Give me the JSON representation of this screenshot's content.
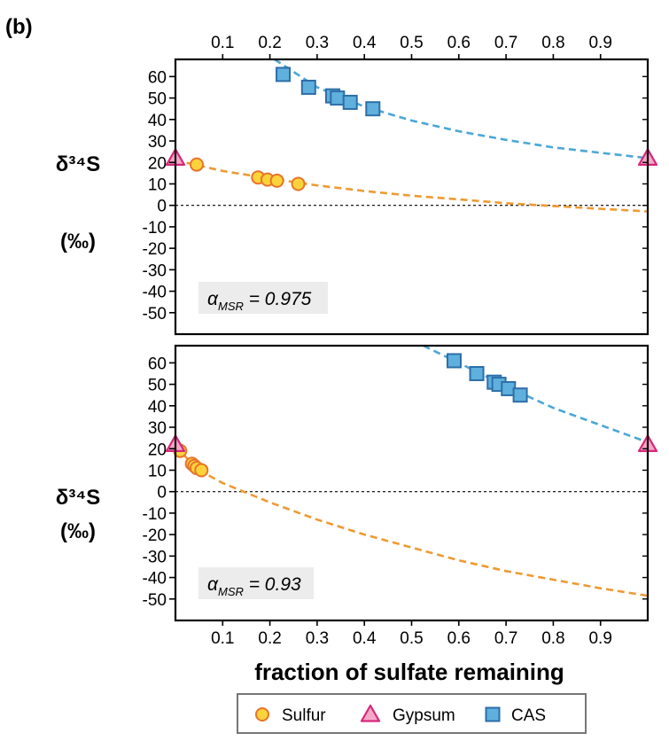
{
  "panel_label": "(b)",
  "xlabel": "fraction of sulfate remaining",
  "ylabel_main": "δ³⁴S",
  "ylabel_unit": "(‰)",
  "colors": {
    "sulfur_fill": "#fcd33b",
    "sulfur_edge": "#e8742a",
    "gypsum_fill": "#f7a8c8",
    "gypsum_edge": "#d6287a",
    "cas_fill": "#5fb0dd",
    "cas_edge": "#2d6ea8",
    "curve_orange": "#ee9a32",
    "curve_blue": "#4aa7d6",
    "annotation_bg": "#ececec"
  },
  "legend": [
    {
      "label": "Sulfur",
      "marker": "circle"
    },
    {
      "label": "Gypsum",
      "marker": "triangle"
    },
    {
      "label": "CAS",
      "marker": "square"
    }
  ],
  "chart_data": [
    {
      "type": "scatter",
      "annotation": {
        "symbol": "α",
        "subscript": "MSR",
        "text": "= 0.975"
      },
      "x_top_ticks": [
        "0.1",
        "0.2",
        "0.3",
        "0.4",
        "0.5",
        "0.6",
        "0.7",
        "0.8",
        "0.9"
      ],
      "x_ticks": [],
      "y_ticks": [
        60,
        50,
        40,
        30,
        20,
        10,
        0,
        -10,
        -20,
        -30,
        -40,
        -50
      ],
      "xlim": [
        0,
        1
      ],
      "ylim": [
        -60,
        68
      ],
      "reference_line_y": 0,
      "series": [
        {
          "name": "Sulfur",
          "x": [
            0.045,
            0.175,
            0.195,
            0.215,
            0.26
          ],
          "y": [
            19,
            13,
            12,
            11.5,
            10
          ]
        },
        {
          "name": "Gypsum",
          "x": [
            0.0,
            1.0
          ],
          "y": [
            22,
            22
          ]
        },
        {
          "name": "CAS",
          "x": [
            0.228,
            0.282,
            0.333,
            0.343,
            0.37,
            0.418
          ],
          "y": [
            61,
            55,
            51,
            50,
            48,
            45
          ]
        }
      ],
      "curves": [
        {
          "name": "orange-fit",
          "x": [
            0.0,
            0.1,
            0.2,
            0.3,
            0.4,
            0.5,
            0.6,
            0.7,
            0.8,
            0.9,
            1.0
          ],
          "y": [
            21,
            16,
            12.5,
            9.3,
            6.7,
            4.5,
            2.8,
            1.0,
            -0.3,
            -1.6,
            -2.8
          ]
        },
        {
          "name": "blue-fit",
          "x": [
            0.21,
            0.3,
            0.4,
            0.5,
            0.6,
            0.7,
            0.8,
            0.9,
            1.0
          ],
          "y": [
            68,
            55,
            46,
            39.5,
            34.5,
            30.5,
            27,
            24.5,
            22
          ]
        }
      ]
    },
    {
      "type": "scatter",
      "annotation": {
        "symbol": "α",
        "subscript": "MSR",
        "text": "= 0.93"
      },
      "x_top_ticks": [],
      "x_ticks": [
        "0.1",
        "0.2",
        "0.3",
        "0.4",
        "0.5",
        "0.6",
        "0.7",
        "0.8",
        "0.9"
      ],
      "y_ticks": [
        60,
        50,
        40,
        30,
        20,
        10,
        0,
        -10,
        -20,
        -30,
        -40,
        -50
      ],
      "xlim": [
        0,
        1
      ],
      "ylim": [
        -60,
        68
      ],
      "reference_line_y": 0,
      "series": [
        {
          "name": "Sulfur",
          "x": [
            0.01,
            0.035,
            0.04,
            0.045,
            0.055
          ],
          "y": [
            19,
            13,
            12,
            11,
            10
          ]
        },
        {
          "name": "Gypsum",
          "x": [
            0.0,
            1.0
          ],
          "y": [
            22,
            22
          ]
        },
        {
          "name": "CAS",
          "x": [
            0.59,
            0.638,
            0.675,
            0.685,
            0.705,
            0.73
          ],
          "y": [
            61,
            55,
            51,
            50,
            48,
            45
          ]
        }
      ],
      "curves": [
        {
          "name": "orange-fit",
          "x": [
            0.0,
            0.02,
            0.05,
            0.1,
            0.15,
            0.2,
            0.3,
            0.4,
            0.5,
            0.6,
            0.7,
            0.8,
            0.9,
            1.0
          ],
          "y": [
            22,
            16.5,
            10,
            4,
            -0.5,
            -5,
            -13,
            -20,
            -26,
            -32,
            -37,
            -41,
            -45,
            -48.5
          ]
        },
        {
          "name": "blue-fit",
          "x": [
            0.525,
            0.6,
            0.7,
            0.8,
            0.9,
            1.0
          ],
          "y": [
            68,
            60,
            49,
            39,
            31,
            23
          ]
        }
      ]
    }
  ]
}
